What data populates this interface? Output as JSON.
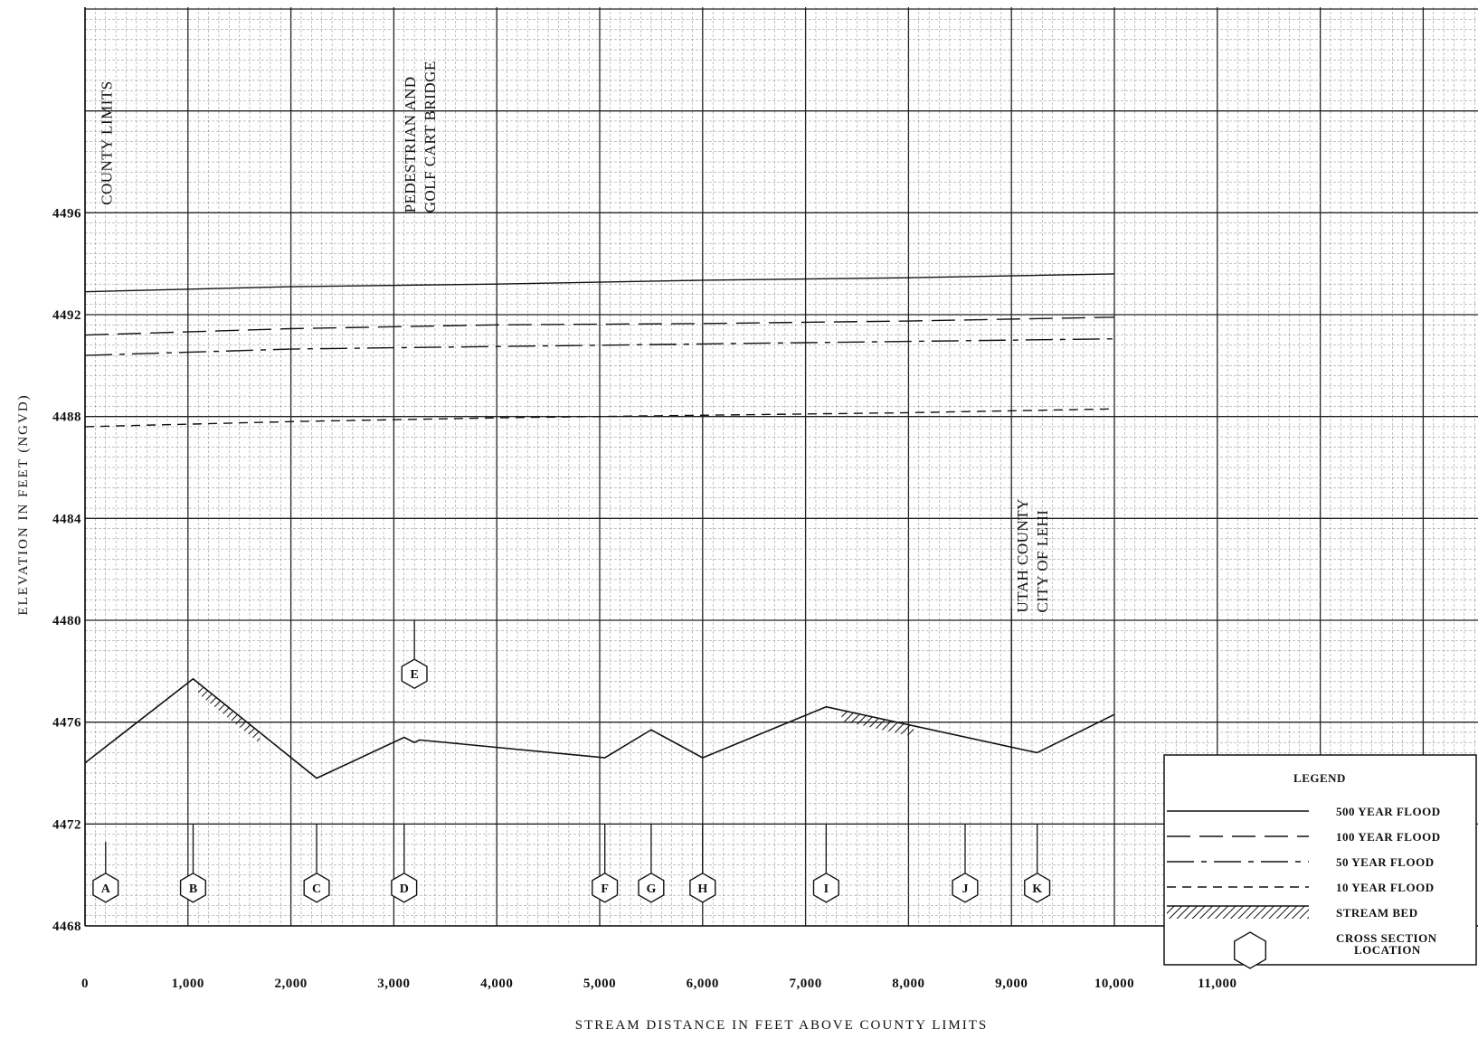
{
  "chart_data": {
    "type": "line",
    "xlabel": "STREAM DISTANCE IN FEET ABOVE COUNTY LIMITS",
    "ylabel": "ELEVATION IN FEET (NGVD)",
    "xlim": [
      0,
      13000
    ],
    "ylim": [
      4468,
      4504
    ],
    "x_ticks": [
      {
        "value": 0,
        "label": "0"
      },
      {
        "value": 1000,
        "label": "1,000"
      },
      {
        "value": 2000,
        "label": "2,000"
      },
      {
        "value": 3000,
        "label": "3,000"
      },
      {
        "value": 4000,
        "label": "4,000"
      },
      {
        "value": 5000,
        "label": "5,000"
      },
      {
        "value": 6000,
        "label": "6,000"
      },
      {
        "value": 7000,
        "label": "7,000"
      },
      {
        "value": 8000,
        "label": "8,000"
      },
      {
        "value": 9000,
        "label": "9,000"
      },
      {
        "value": 10000,
        "label": "10,000"
      },
      {
        "value": 11000,
        "label": "11,000"
      }
    ],
    "y_ticks": [
      {
        "value": 4468,
        "label": "4468"
      },
      {
        "value": 4472,
        "label": "4472"
      },
      {
        "value": 4476,
        "label": "4476"
      },
      {
        "value": 4480,
        "label": "4480"
      },
      {
        "value": 4484,
        "label": "4484"
      },
      {
        "value": 4488,
        "label": "4488"
      },
      {
        "value": 4492,
        "label": "4492"
      },
      {
        "value": 4496,
        "label": "4496"
      }
    ],
    "grid": true,
    "series": [
      {
        "name": "500 YEAR FLOOD",
        "style": "solid",
        "x": [
          0,
          2000,
          4000,
          6000,
          8000,
          10000
        ],
        "y": [
          4492.9,
          4493.1,
          4493.2,
          4493.35,
          4493.45,
          4493.6
        ]
      },
      {
        "name": "100 YEAR FLOOD",
        "style": "long-dash",
        "x": [
          0,
          2000,
          4000,
          6000,
          8000,
          10000
        ],
        "y": [
          4491.2,
          4491.45,
          4491.6,
          4491.65,
          4491.75,
          4491.9
        ]
      },
      {
        "name": "50 YEAR FLOOD",
        "style": "dash-dot",
        "x": [
          0,
          2000,
          4000,
          6000,
          8000,
          10000
        ],
        "y": [
          4490.4,
          4490.65,
          4490.75,
          4490.85,
          4490.95,
          4491.05
        ]
      },
      {
        "name": "10 YEAR FLOOD",
        "style": "short-dash",
        "x": [
          0,
          2000,
          4000,
          6000,
          8000,
          10000
        ],
        "y": [
          4487.6,
          4487.8,
          4487.95,
          4488.05,
          4488.15,
          4488.3
        ]
      },
      {
        "name": "STREAM BED",
        "style": "stream-bed",
        "x": [
          0,
          1050,
          2250,
          3100,
          3200,
          3250,
          5050,
          5500,
          6000,
          7200,
          9250,
          10000
        ],
        "y": [
          4474.4,
          4477.7,
          4473.8,
          4475.4,
          4475.2,
          4475.3,
          4474.6,
          4475.7,
          4474.6,
          4476.6,
          4474.8,
          4476.3
        ]
      }
    ],
    "hatch_segments": [
      {
        "x": [
          1100,
          1700
        ]
      },
      {
        "x": [
          7350,
          8050
        ]
      }
    ],
    "cross_sections": [
      {
        "label": "A",
        "x": 200,
        "elev_top": 4471.3,
        "marker_elev": 4469.5
      },
      {
        "label": "B",
        "x": 1050,
        "elev_top": 4472,
        "marker_elev": 4469.5
      },
      {
        "label": "C",
        "x": 2250,
        "elev_top": 4472,
        "marker_elev": 4469.5
      },
      {
        "label": "D",
        "x": 3100,
        "elev_top": 4472,
        "marker_elev": 4469.5
      },
      {
        "label": "E",
        "x": 3200,
        "elev_top": 4480,
        "marker_elev": 4477.9
      },
      {
        "label": "F",
        "x": 5050,
        "elev_top": 4472,
        "marker_elev": 4469.5
      },
      {
        "label": "G",
        "x": 5500,
        "elev_top": 4472,
        "marker_elev": 4469.5
      },
      {
        "label": "H",
        "x": 6000,
        "elev_top": 4472,
        "marker_elev": 4469.5
      },
      {
        "label": "I",
        "x": 7200,
        "elev_top": 4472,
        "marker_elev": 4469.5
      },
      {
        "label": "J",
        "x": 8550,
        "elev_top": 4472,
        "marker_elev": 4469.5
      },
      {
        "label": "K",
        "x": 9250,
        "elev_top": 4472,
        "marker_elev": 4469.5
      }
    ],
    "annotations": [
      {
        "lines": [
          "COUNTY LIMITS"
        ],
        "x": 100,
        "elev": 4496.3
      },
      {
        "lines": [
          "PEDESTRIAN AND",
          "GOLF CART BRIDGE"
        ],
        "x": 3050,
        "elev": 4496.0
      },
      {
        "lines": [
          "UTAH COUNTY",
          "CITY OF LEHI"
        ],
        "x": 9000,
        "elev": 4480.3
      }
    ],
    "boundary_lines": [
      {
        "x": 9000,
        "from_elev": 4480.5,
        "to_elev": 4475.0
      }
    ],
    "legend": {
      "title": "LEGEND",
      "position": "bottom-right",
      "entries": [
        {
          "label": "500 YEAR FLOOD",
          "style": "solid"
        },
        {
          "label": "100 YEAR FLOOD",
          "style": "long-dash"
        },
        {
          "label": "50 YEAR FLOOD",
          "style": "dash-dot"
        },
        {
          "label": "10 YEAR FLOOD",
          "style": "short-dash"
        },
        {
          "label": "STREAM BED",
          "style": "stream-bed"
        },
        {
          "label": "CROSS SECTION LOCATION",
          "style": "hexagon"
        }
      ]
    }
  }
}
